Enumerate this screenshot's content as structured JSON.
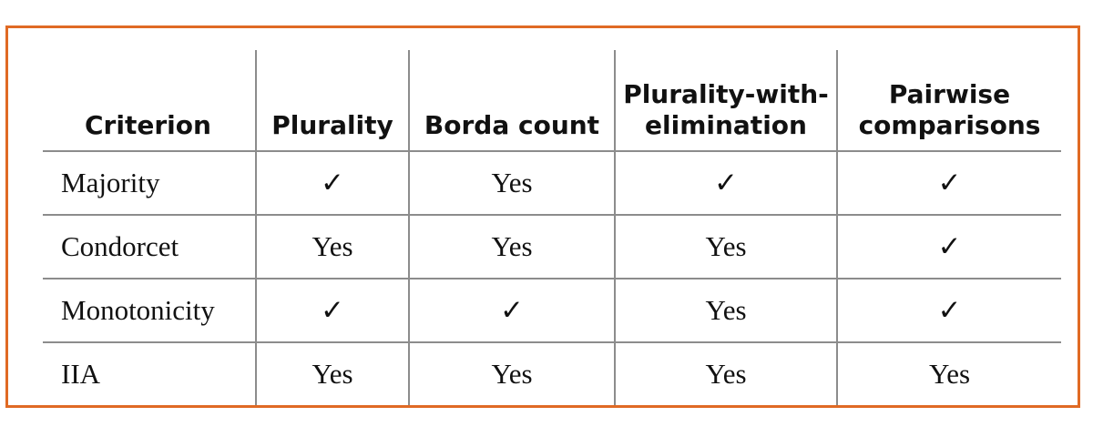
{
  "table": {
    "headers": [
      "Criterion",
      "Plurality",
      "Borda count",
      "Plurality-with-\nelimination",
      "Pairwise\ncomparisons"
    ],
    "rows": [
      {
        "criterion": "Majority",
        "values": [
          "✓",
          "Yes",
          "✓",
          "✓"
        ]
      },
      {
        "criterion": "Condorcet",
        "values": [
          "Yes",
          "Yes",
          "Yes",
          "✓"
        ]
      },
      {
        "criterion": "Monotonicity",
        "values": [
          "✓",
          "✓",
          "Yes",
          "✓"
        ]
      },
      {
        "criterion": "IIA",
        "values": [
          "Yes",
          "Yes",
          "Yes",
          "Yes"
        ]
      }
    ]
  },
  "colors": {
    "border": "#e06a24",
    "rule": "#8c8c8c",
    "text": "#111111"
  }
}
